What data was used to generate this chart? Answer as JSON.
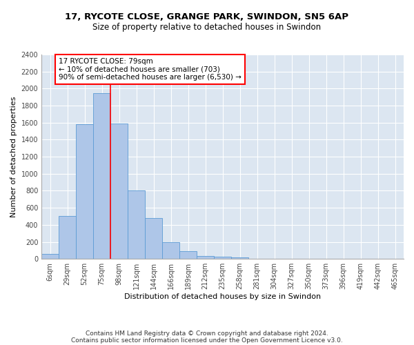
{
  "title1": "17, RYCOTE CLOSE, GRANGE PARK, SWINDON, SN5 6AP",
  "title2": "Size of property relative to detached houses in Swindon",
  "xlabel": "Distribution of detached houses by size in Swindon",
  "ylabel": "Number of detached properties",
  "categories": [
    "6sqm",
    "29sqm",
    "52sqm",
    "75sqm",
    "98sqm",
    "121sqm",
    "144sqm",
    "166sqm",
    "189sqm",
    "212sqm",
    "235sqm",
    "258sqm",
    "281sqm",
    "304sqm",
    "327sqm",
    "350sqm",
    "373sqm",
    "396sqm",
    "419sqm",
    "442sqm",
    "465sqm"
  ],
  "values": [
    60,
    500,
    1580,
    1950,
    1590,
    800,
    480,
    195,
    90,
    35,
    25,
    20,
    0,
    0,
    0,
    0,
    0,
    0,
    0,
    0,
    0
  ],
  "bar_color": "#aec6e8",
  "bar_edge_color": "#5b9bd5",
  "background_color": "#dce6f1",
  "vline_color": "red",
  "annotation_text": "17 RYCOTE CLOSE: 79sqm\n← 10% of detached houses are smaller (703)\n90% of semi-detached houses are larger (6,530) →",
  "annotation_box_color": "white",
  "annotation_box_edge_color": "red",
  "ylim": [
    0,
    2400
  ],
  "yticks": [
    0,
    200,
    400,
    600,
    800,
    1000,
    1200,
    1400,
    1600,
    1800,
    2000,
    2200,
    2400
  ],
  "footer1": "Contains HM Land Registry data © Crown copyright and database right 2024.",
  "footer2": "Contains public sector information licensed under the Open Government Licence v3.0.",
  "title1_fontsize": 9.5,
  "title2_fontsize": 8.5,
  "xlabel_fontsize": 8,
  "ylabel_fontsize": 8,
  "tick_fontsize": 7,
  "annotation_fontsize": 7.5,
  "footer_fontsize": 6.5
}
